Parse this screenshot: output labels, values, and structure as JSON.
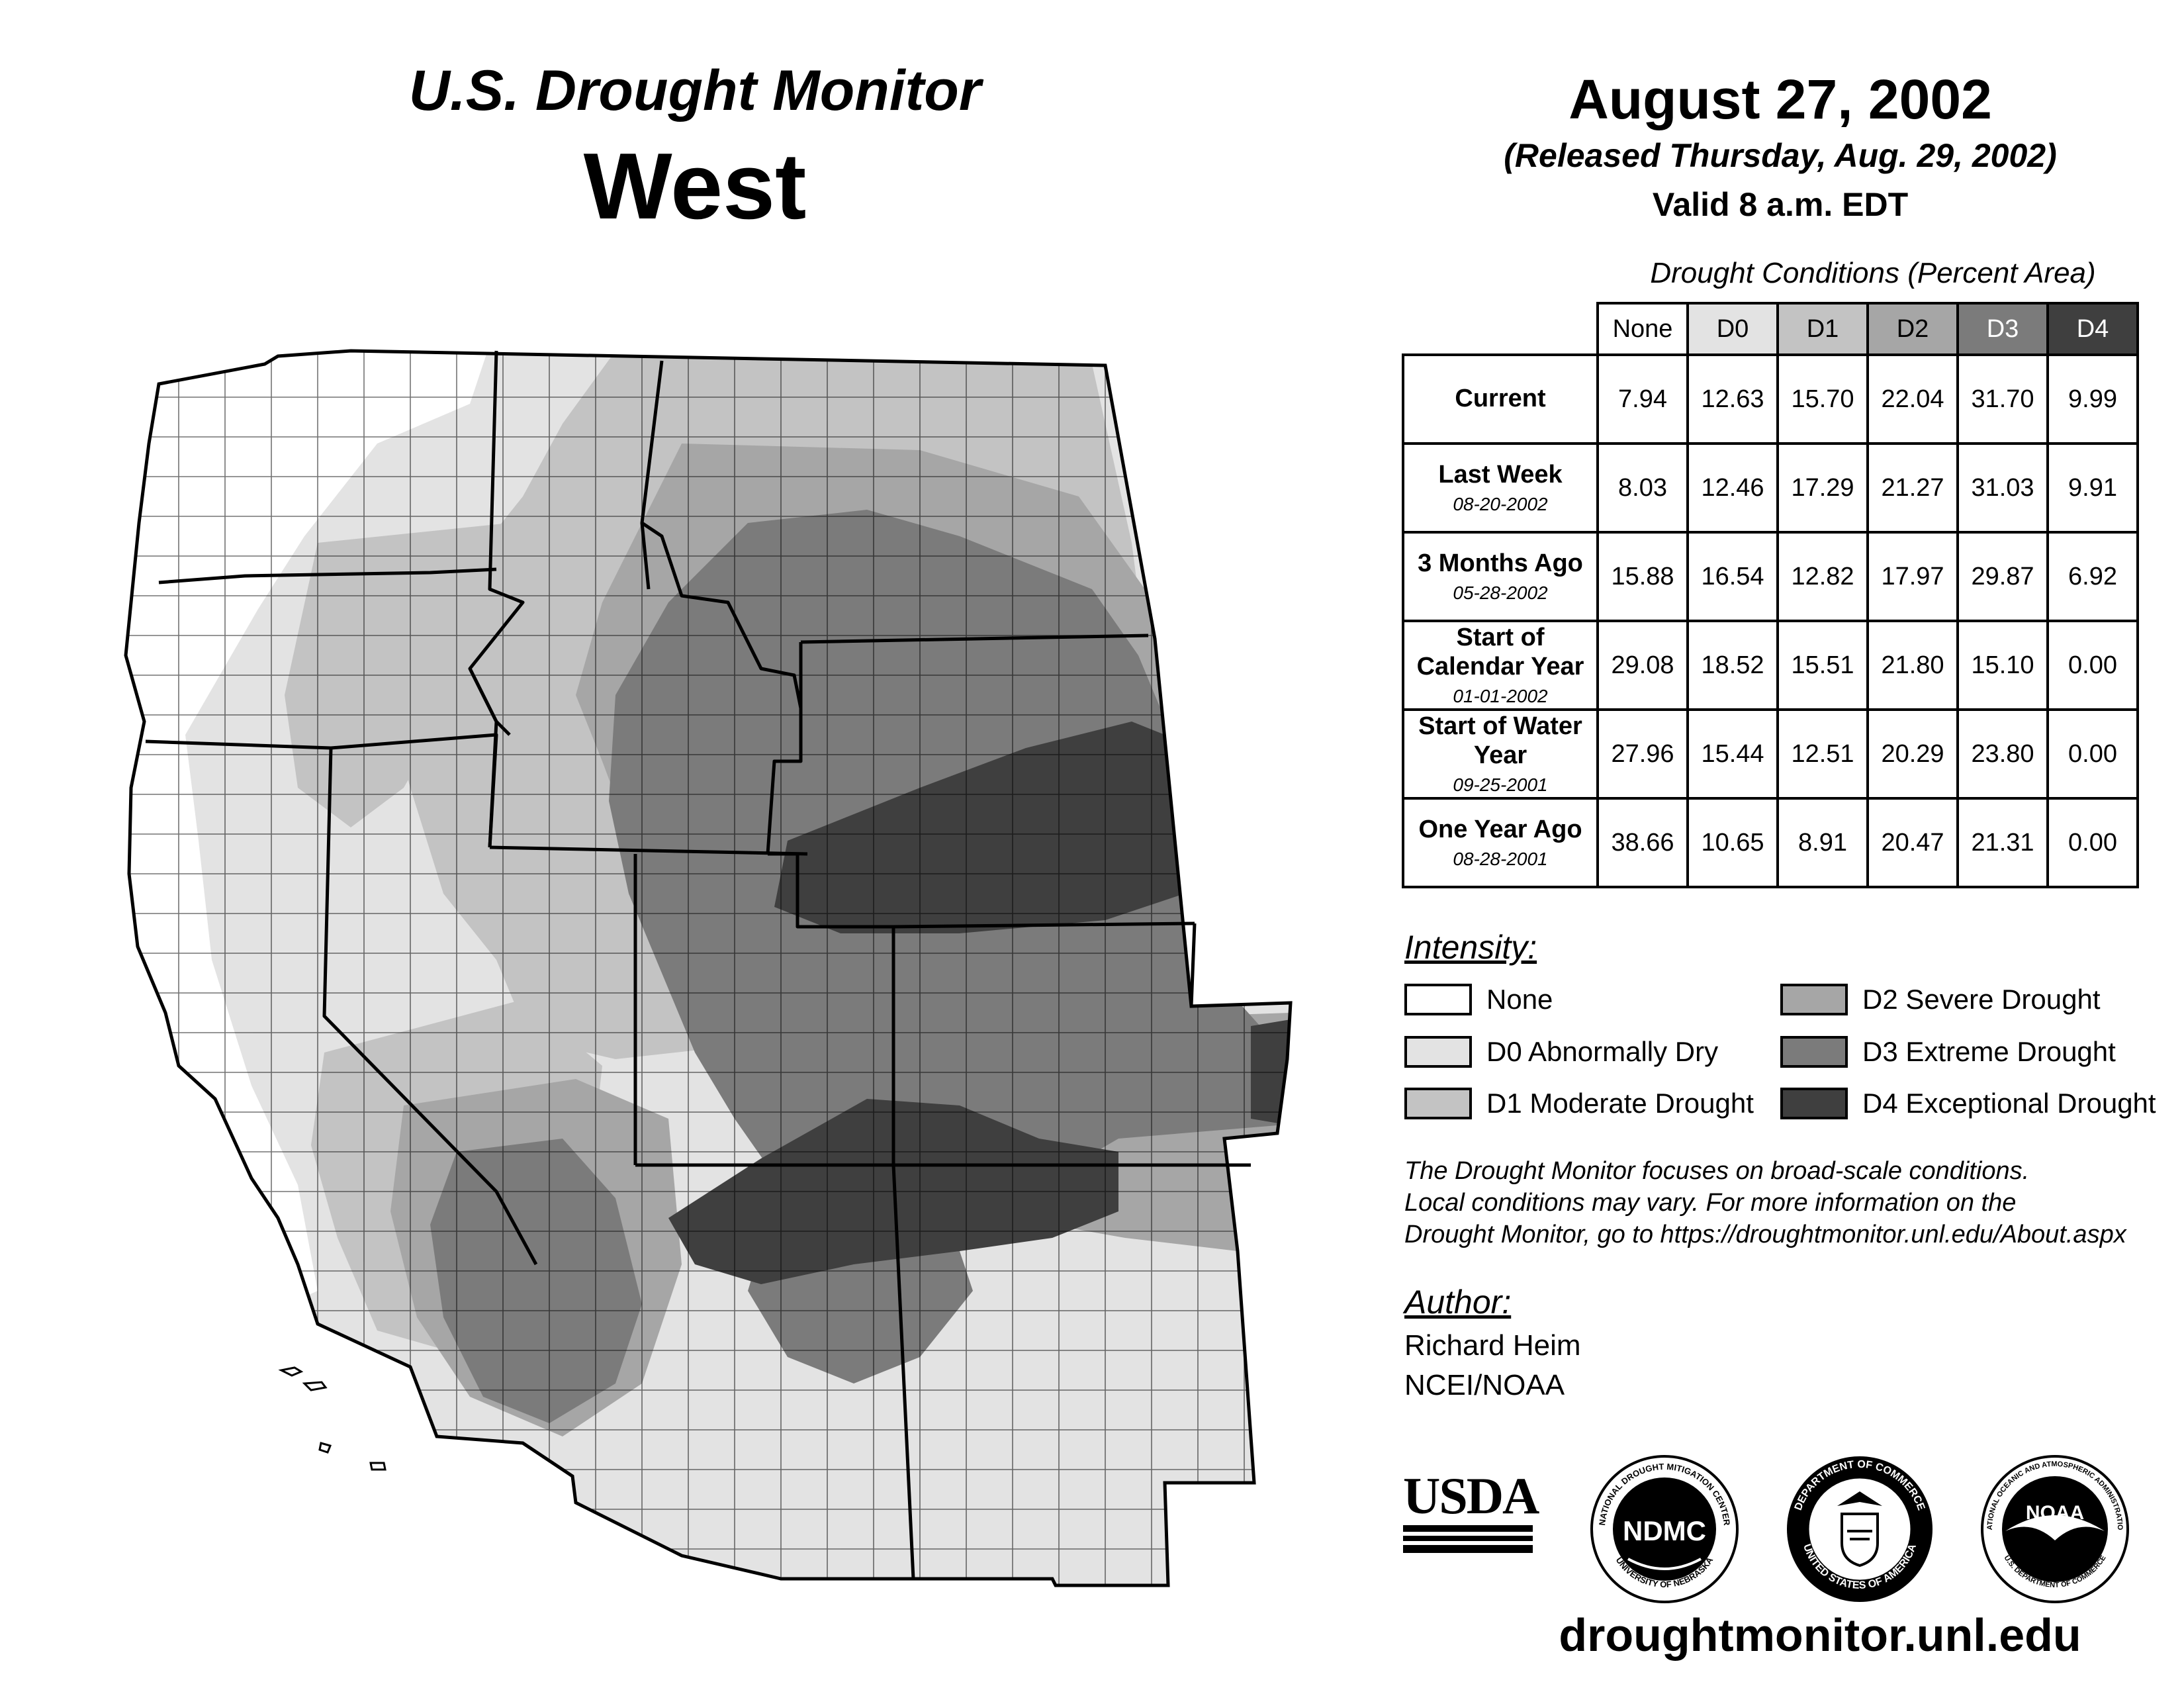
{
  "header": {
    "title_line1": "U.S. Drought Monitor",
    "title_line2": "West",
    "date": "August 27, 2002",
    "released": "(Released Thursday, Aug. 29, 2002)",
    "valid": "Valid 8 a.m. EDT"
  },
  "stats_table": {
    "caption": "Drought Conditions (Percent Area)",
    "columns": [
      "None",
      "D0",
      "D1",
      "D2",
      "D3",
      "D4"
    ],
    "rows": [
      {
        "label": "Current",
        "date": "",
        "values": [
          "7.94",
          "12.63",
          "15.70",
          "22.04",
          "31.70",
          "9.99"
        ]
      },
      {
        "label": "Last Week",
        "date": "08-20-2002",
        "values": [
          "8.03",
          "12.46",
          "17.29",
          "21.27",
          "31.03",
          "9.91"
        ]
      },
      {
        "label": "3 Months Ago",
        "date": "05-28-2002",
        "values": [
          "15.88",
          "16.54",
          "12.82",
          "17.97",
          "29.87",
          "6.92"
        ]
      },
      {
        "label": "Start of Calendar Year",
        "date": "01-01-2002",
        "values": [
          "29.08",
          "18.52",
          "15.51",
          "21.80",
          "15.10",
          "0.00"
        ]
      },
      {
        "label": "Start of Water Year",
        "date": "09-25-2001",
        "values": [
          "27.96",
          "15.44",
          "12.51",
          "20.29",
          "23.80",
          "0.00"
        ]
      },
      {
        "label": "One Year Ago",
        "date": "08-28-2001",
        "values": [
          "38.66",
          "10.65",
          "8.91",
          "20.47",
          "21.31",
          "0.00"
        ]
      }
    ]
  },
  "legend": {
    "heading": "Intensity:",
    "items": [
      {
        "label": "None",
        "color": "#ffffff"
      },
      {
        "label": "D0 Abnormally Dry",
        "color": "#e3e3e3"
      },
      {
        "label": "D1 Moderate Drought",
        "color": "#c3c3c3"
      },
      {
        "label": "D2 Severe Drought",
        "color": "#a6a6a6"
      },
      {
        "label": "D3 Extreme Drought",
        "color": "#7b7b7b"
      },
      {
        "label": "D4 Exceptional Drought",
        "color": "#3f3f3f"
      }
    ]
  },
  "note": {
    "line1": "The Drought Monitor focuses on broad-scale conditions.",
    "line2": "Local conditions may vary. For more information on the",
    "line3": "Drought Monitor, go to https://droughtmonitor.unl.edu/About.aspx"
  },
  "author": {
    "heading": "Author:",
    "name": "Richard Heim",
    "org": "NCEI/NOAA"
  },
  "logos": {
    "usda": "USDA",
    "ndmc": "NDMC",
    "ndmc_ring_top": "NATIONAL DROUGHT MITIGATION CENTER",
    "ndmc_ring_bottom": "UNIVERSITY OF NEBRASKA",
    "doc_ring_top": "DEPARTMENT OF COMMERCE",
    "doc_ring_bottom": "UNITED STATES OF AMERICA",
    "noaa": "NOAA",
    "noaa_ring": "NATIONAL OCEANIC AND ATMOSPHERIC ADMINISTRATION",
    "noaa_ring_bottom": "U.S. DEPARTMENT OF COMMERCE"
  },
  "footer_url": "droughtmonitor.unl.edu"
}
